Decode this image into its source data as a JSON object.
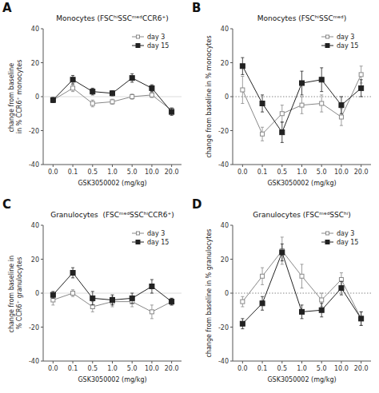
{
  "chart_data": [
    {
      "type": "line",
      "title": "Monocytes (FSCʰⁱSSCᵐᵉᵈCCR6⁺)",
      "x_label": "GSK3050002 (mg/kg)",
      "y_label": "change from baseline in % CCR6⁺ monocytes",
      "categories": [
        "0.0",
        "0.1",
        "0.5",
        "1.0",
        "5.0",
        "10.0",
        "20.0"
      ],
      "series": [
        {
          "name": "day 3",
          "color": "#888888",
          "marker": "open-square",
          "line_style": "solid",
          "values": [
            -2,
            5,
            -4,
            -3,
            0,
            1,
            -8
          ],
          "errors": [
            1.5,
            2,
            2,
            1.5,
            1.5,
            1.5,
            1.5
          ]
        },
        {
          "name": "day 15",
          "color": "#222222",
          "marker": "square",
          "line_style": "solid",
          "values": [
            -2,
            10,
            3,
            2,
            11,
            5,
            -9
          ],
          "errors": [
            1.5,
            2.5,
            2,
            1.5,
            2.5,
            2,
            2
          ]
        }
      ],
      "ylim": [
        -40,
        40
      ],
      "yticks": [
        -40,
        -20,
        0,
        20,
        40
      ],
      "grid": false,
      "legend": "upper right",
      "annotations": [
        {
          "text": "A"
        },
        {
          "y": 0,
          "line_style": "solid"
        }
      ]
    },
    {
      "type": "line",
      "title": "Monocytes (FSCʰⁱSSCᵐᵉᵈ)",
      "x_label": "GSK3050002 (mg/kg)",
      "y_label": "change from baseline in % monocytes",
      "categories": [
        "0.0",
        "0.1",
        "0.5",
        "1.0",
        "5.0",
        "10.0",
        "20.0"
      ],
      "series": [
        {
          "name": "day 3",
          "color": "#888888",
          "marker": "open-square",
          "line_style": "solid",
          "values": [
            4,
            -22,
            -10,
            -5,
            -4,
            -12,
            13
          ],
          "errors": [
            8,
            4,
            5,
            5,
            5,
            5,
            5
          ]
        },
        {
          "name": "day 15",
          "color": "#222222",
          "marker": "square",
          "line_style": "solid",
          "values": [
            18,
            -4,
            -21,
            8,
            10,
            -5,
            5
          ],
          "errors": [
            5,
            5,
            6,
            7,
            7,
            5,
            5
          ]
        }
      ],
      "ylim": [
        -40,
        40
      ],
      "yticks": [
        -40,
        -20,
        0,
        20,
        40
      ],
      "grid": false,
      "legend": "upper right",
      "annotations": [
        {
          "text": "B"
        },
        {
          "y": 0,
          "line_style": "dotted"
        }
      ]
    },
    {
      "type": "line",
      "title": "Granulocytes  (FSCᵐᵉᵈSSCʰⁱCCR6⁺)",
      "x_label": "GSK3050002 (mg/kg)",
      "y_label": "change from baseline in % CCR6⁺ granulocytes",
      "categories": [
        "0.0",
        "0.1",
        "0.5",
        "1.0",
        "5.0",
        "10.0",
        "20.0"
      ],
      "series": [
        {
          "name": "day 3",
          "color": "#888888",
          "marker": "open-square",
          "line_style": "solid",
          "values": [
            -4,
            0,
            -8,
            -5,
            -5,
            -11,
            -5
          ],
          "errors": [
            3,
            2,
            3,
            3,
            3,
            4,
            2
          ]
        },
        {
          "name": "day 15",
          "color": "#222222",
          "marker": "square",
          "line_style": "solid",
          "values": [
            -1,
            12,
            -3,
            -4,
            -3,
            4,
            -5
          ],
          "errors": [
            2,
            3,
            4,
            3,
            3,
            4,
            2
          ]
        }
      ],
      "ylim": [
        -40,
        40
      ],
      "yticks": [
        -40,
        -20,
        0,
        20,
        40
      ],
      "grid": false,
      "legend": "upper right",
      "annotations": [
        {
          "text": "C"
        },
        {
          "y": 0,
          "line_style": "solid"
        }
      ]
    },
    {
      "type": "line",
      "title": "Granulocytes (FSCᵐᵉᵈSSCʰⁱ)",
      "x_label": "GSK3050002 (mg/kg)",
      "y_label": "change from baseline in % granulocytes",
      "categories": [
        "0.0",
        "0.1",
        "0.5",
        "1.0",
        "5.0",
        "10.0",
        "20.0"
      ],
      "series": [
        {
          "name": "day 3",
          "color": "#888888",
          "marker": "open-square",
          "line_style": "solid",
          "values": [
            -5,
            10,
            25,
            10,
            -4,
            8,
            -15
          ],
          "errors": [
            3,
            5,
            8,
            7,
            4,
            4,
            4
          ]
        },
        {
          "name": "day 15",
          "color": "#222222",
          "marker": "square",
          "line_style": "solid",
          "values": [
            -18,
            -6,
            24,
            -11,
            -10,
            3,
            -15
          ],
          "errors": [
            3,
            4,
            5,
            4,
            4,
            4,
            4
          ]
        }
      ],
      "ylim": [
        -40,
        40
      ],
      "yticks": [
        -40,
        -20,
        0,
        20,
        40
      ],
      "grid": false,
      "legend": "upper right",
      "annotations": [
        {
          "text": "D"
        },
        {
          "y": 0,
          "line_style": "dotted"
        }
      ]
    }
  ]
}
